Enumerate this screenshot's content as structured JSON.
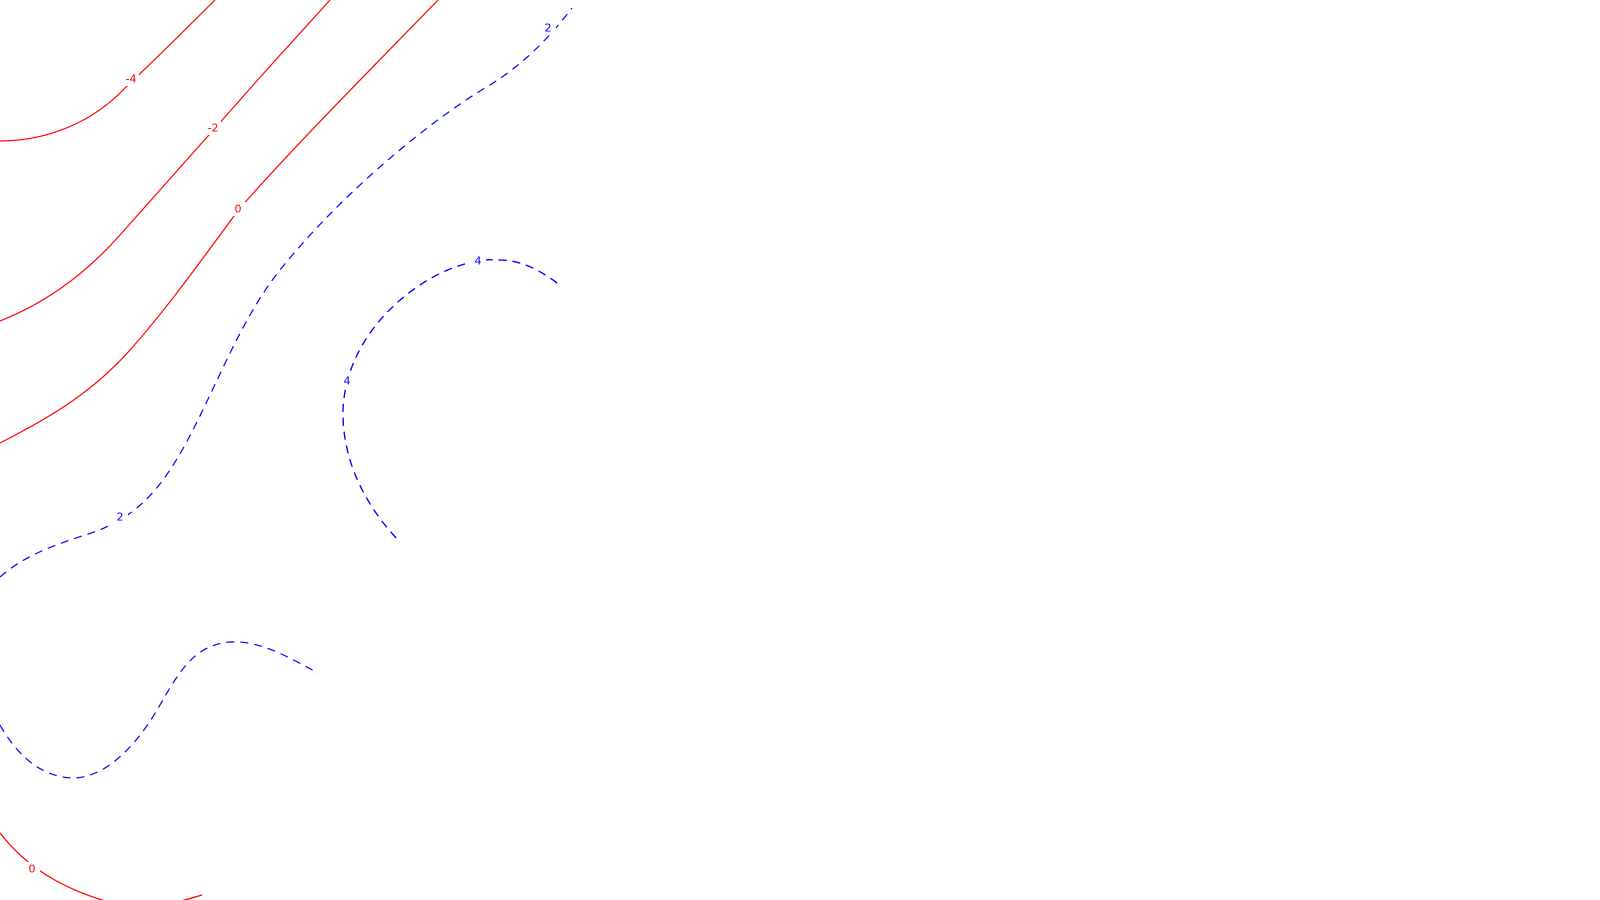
{
  "chart_data": {
    "type": "contour",
    "title": "",
    "xlabel": "",
    "ylabel": "",
    "grid": false,
    "legend": "none",
    "levels": [
      -4,
      -2,
      0,
      2,
      4
    ],
    "series": [
      {
        "level": -4,
        "label": "-4",
        "color": "#ff0000",
        "linestyle": "solid"
      },
      {
        "level": -2,
        "label": "-2",
        "color": "#ff0000",
        "linestyle": "solid"
      },
      {
        "level": 0,
        "label": "0",
        "color": "#ff0000",
        "linestyle": "solid"
      },
      {
        "level": 2,
        "label": "2",
        "color": "#0000ff",
        "linestyle": "dashed"
      },
      {
        "level": 4,
        "label": "4",
        "color": "#0000ff",
        "linestyle": "dashed"
      },
      {
        "level": 4,
        "label": "4",
        "color": "#0000ff",
        "linestyle": "dashed"
      },
      {
        "level": 2,
        "label": "2",
        "color": "#0000ff",
        "linestyle": "dashed"
      },
      {
        "level": 0,
        "label": "0",
        "color": "#ff0000",
        "linestyle": "solid"
      }
    ]
  }
}
